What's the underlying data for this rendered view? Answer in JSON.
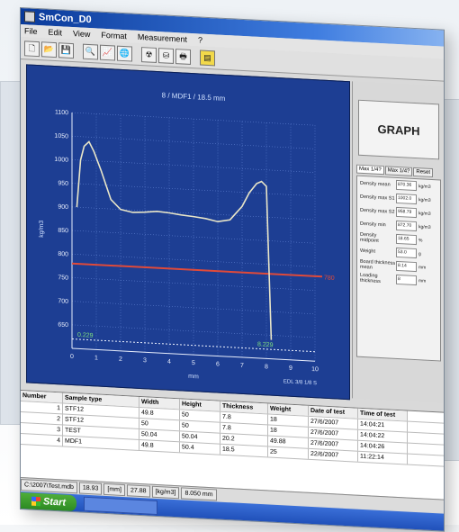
{
  "window": {
    "title": "SmCon_D0"
  },
  "menu": [
    "File",
    "Edit",
    "View",
    "Format",
    "Measurement",
    "?"
  ],
  "toolbar": {
    "buttons": [
      {
        "icon": "new-file-icon",
        "glyph": "🗋"
      },
      {
        "icon": "open-folder-icon",
        "glyph": "📂"
      },
      {
        "icon": "save-icon",
        "glyph": "💾"
      },
      {
        "icon": "zoom-icon",
        "glyph": "🔍"
      },
      {
        "icon": "chart-icon",
        "glyph": "📈"
      },
      {
        "icon": "globe-icon",
        "glyph": "🌐"
      },
      {
        "icon": "radiation-icon",
        "glyph": "☢"
      },
      {
        "icon": "device-icon",
        "glyph": "⛁"
      },
      {
        "icon": "printer-icon",
        "glyph": "🖶"
      },
      {
        "icon": "note-icon",
        "glyph": "▤"
      }
    ]
  },
  "side_panel": {
    "title": "GRAPH",
    "tabs": [
      "Max 1/4?",
      "Max 1/4?",
      "Reset"
    ],
    "properties": [
      {
        "label": "Density mean",
        "value": "870.36",
        "unit": "kg/m3"
      },
      {
        "label": "Density max S1",
        "value": "1002.0",
        "unit": "kg/m3"
      },
      {
        "label": "Density max S2",
        "value": "958.79",
        "unit": "kg/m3"
      },
      {
        "label": "Density min",
        "value": "872.70",
        "unit": "kg/m3"
      },
      {
        "label": "Density midpoint",
        "value": "18.65",
        "unit": "%"
      },
      {
        "label": "Weight",
        "value": "53.0",
        "unit": "g"
      },
      {
        "label": "Board thickness mean",
        "value": "8.14",
        "unit": "mm"
      },
      {
        "label": "Loading thickness",
        "value": "8",
        "unit": "mm"
      }
    ]
  },
  "chart_data": {
    "type": "line",
    "title": "8 / MDF1 / 18.5 mm",
    "xlabel": "mm",
    "ylabel": "kg/m3",
    "xlim": [
      0,
      10
    ],
    "ylim": [
      600,
      1100
    ],
    "xticks": [
      0,
      1,
      2,
      3,
      4,
      5,
      6,
      7,
      8,
      9,
      10
    ],
    "yticks": [
      650,
      700,
      750,
      800,
      850,
      900,
      950,
      1000,
      1050,
      1100
    ],
    "grid": true,
    "reference_line": {
      "y": 780,
      "label": "780",
      "color": "#e04a3a"
    },
    "baseline_labels": [
      "0.229",
      "8.229"
    ],
    "footer_label": "EDL 3/8 1/8 S",
    "series": [
      {
        "color": "#e9e6c8",
        "x": [
          0.2,
          0.35,
          0.5,
          0.7,
          0.9,
          1.2,
          1.6,
          2.0,
          2.5,
          3.0,
          3.5,
          4.0,
          4.5,
          5.0,
          5.5,
          6.0,
          6.5,
          7.0,
          7.3,
          7.6,
          7.8,
          8.0,
          8.1,
          8.2
        ],
        "y": [
          900,
          1000,
          1030,
          1040,
          1020,
          980,
          920,
          900,
          895,
          897,
          900,
          898,
          895,
          893,
          890,
          885,
          890,
          920,
          950,
          970,
          975,
          965,
          800,
          640
        ]
      }
    ]
  },
  "table": {
    "headers": [
      "Number",
      "Sample type",
      "Width",
      "Height",
      "Thickness",
      "Weight",
      "Date of test",
      "Time of test"
    ],
    "rows": [
      [
        "1",
        "STF12",
        "49.8",
        "50",
        "7.8",
        "18",
        "27/6/2007",
        "14:04:21"
      ],
      [
        "2",
        "STF12",
        "50",
        "50",
        "7.8",
        "18",
        "27/6/2007",
        "14:04:22"
      ],
      [
        "3",
        "TEST",
        "50.04",
        "50.04",
        "20.2",
        "49.88",
        "27/6/2007",
        "14:04:26"
      ],
      [
        "4",
        "MDF1",
        "49.8",
        "50.4",
        "18.5",
        "25",
        "22/6/2007",
        "11:22:14"
      ]
    ]
  },
  "status": {
    "path": "C:\\2007\\Test.mdb",
    "value1": "18.93",
    "unit1": "[mm]",
    "value2": "27.88",
    "unit2": "[kg/m3]",
    "value3": "8.050 mm"
  },
  "taskbar": {
    "start_label": "Start"
  }
}
